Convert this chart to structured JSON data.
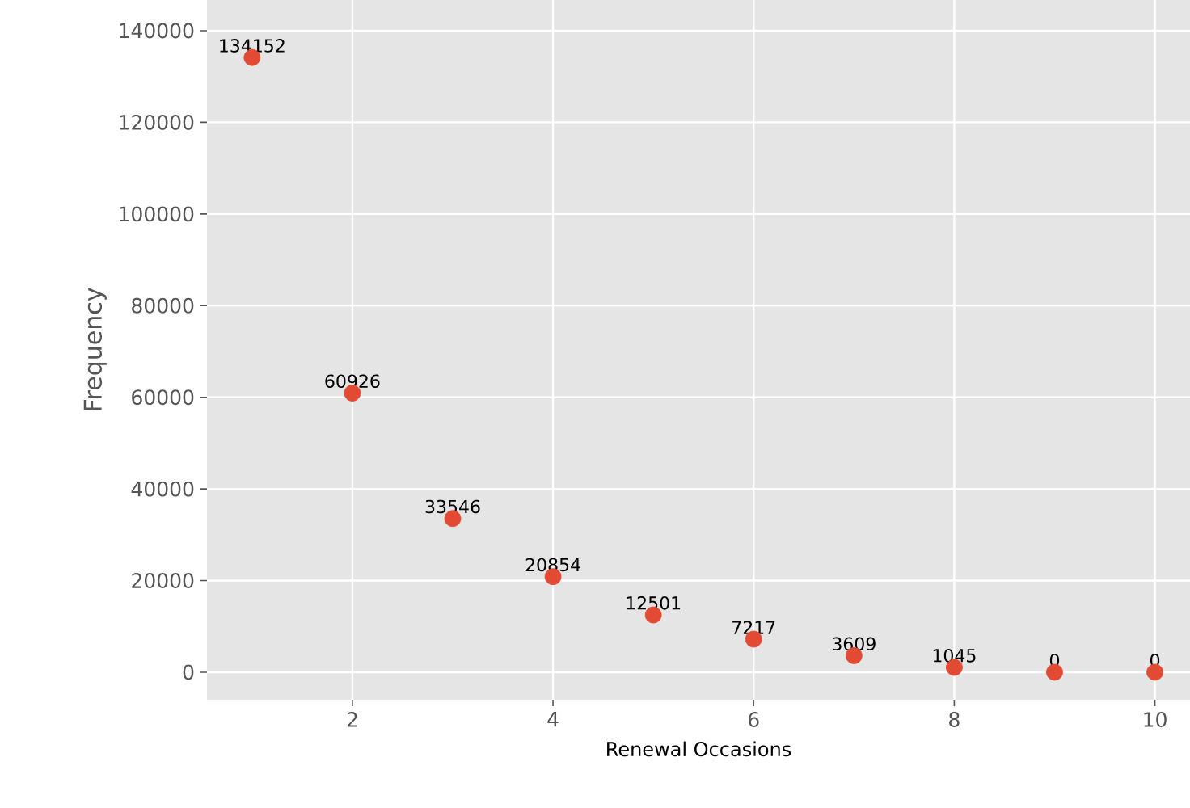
{
  "chart_data": {
    "type": "scatter",
    "xlabel": "Renewal Occasions",
    "ylabel": "Frequency",
    "x": [
      1,
      2,
      3,
      4,
      5,
      6,
      7,
      8,
      9,
      10
    ],
    "values": [
      134152,
      60926,
      33546,
      20854,
      12501,
      7217,
      3609,
      1045,
      0,
      0
    ],
    "color": "#e24a33",
    "marker": "circle",
    "data_labels": true,
    "grid": true,
    "xlim": [
      0.55,
      10.35
    ],
    "ylim": [
      -6000,
      146700
    ],
    "xticks": [
      2,
      4,
      6,
      8,
      10
    ],
    "yticks": [
      0,
      20000,
      40000,
      60000,
      80000,
      100000,
      120000,
      140000
    ]
  }
}
